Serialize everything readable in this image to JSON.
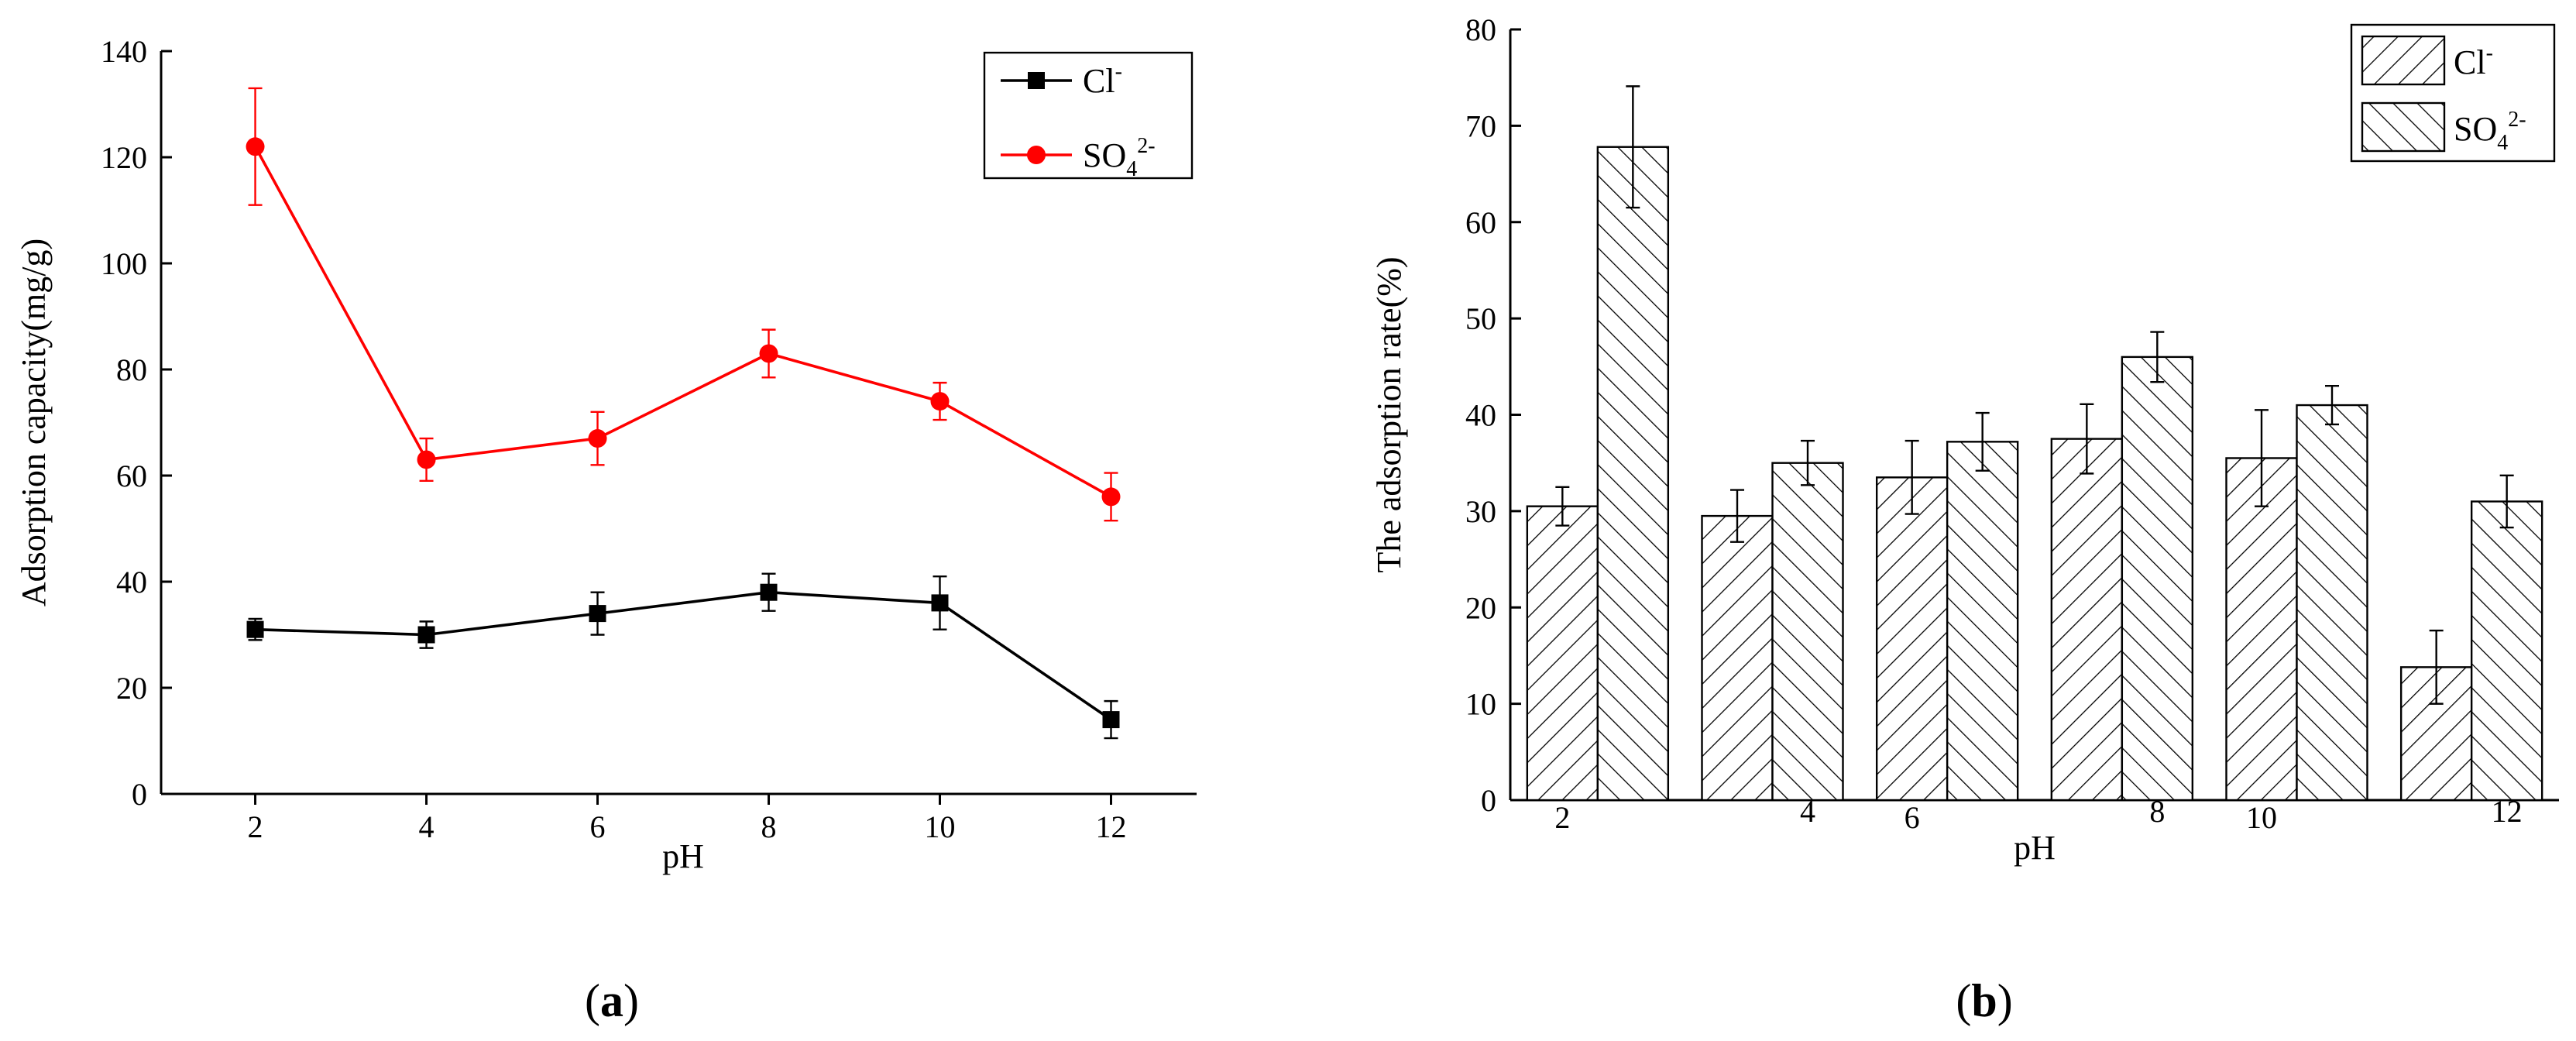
{
  "chart_data": [
    {
      "type": "line",
      "panel_label": "a",
      "xlabel": "pH",
      "ylabel": "Adsorption capacity(mg/g)",
      "x": [
        2,
        4,
        6,
        8,
        10,
        12
      ],
      "xlim": [
        0.9,
        13
      ],
      "ylim": [
        0,
        140
      ],
      "xticks": [
        2,
        4,
        6,
        8,
        10,
        12
      ],
      "yticks": [
        0,
        20,
        40,
        60,
        80,
        100,
        120,
        140
      ],
      "grid": false,
      "legend_position": "top-right",
      "series": [
        {
          "name": "Cl",
          "superscript": "-",
          "subscript": "",
          "color": "#000000",
          "marker": "square",
          "values": [
            31,
            30,
            34,
            38,
            36,
            14
          ],
          "errors": [
            2,
            2.5,
            4,
            3.5,
            5,
            3.5
          ]
        },
        {
          "name": "SO",
          "subscript": "4",
          "superscript": "2-",
          "color": "#ff0000",
          "marker": "circle",
          "values": [
            122,
            63,
            67,
            83,
            74,
            56
          ],
          "errors": [
            11,
            4,
            5,
            4.5,
            3.5,
            4.5
          ]
        }
      ]
    },
    {
      "type": "bar",
      "panel_label": "b",
      "xlabel": "pH",
      "ylabel": "The adsorption rate(%)",
      "categories": [
        "2",
        "4",
        "6",
        "8",
        "10",
        "12"
      ],
      "ylim": [
        0,
        80
      ],
      "yticks": [
        0,
        10,
        20,
        30,
        40,
        50,
        60,
        70,
        80
      ],
      "grid": false,
      "legend_position": "top-right",
      "series": [
        {
          "name": "Cl",
          "superscript": "-",
          "subscript": "",
          "hatch": "forward-diagonal",
          "values": [
            30.5,
            29.5,
            33.5,
            37.5,
            35.5,
            13.8
          ],
          "errors": [
            2,
            2.7,
            3.8,
            3.6,
            5,
            3.8
          ]
        },
        {
          "name": "SO",
          "subscript": "4",
          "superscript": "2-",
          "hatch": "back-diagonal",
          "values": [
            67.8,
            35,
            37.2,
            46,
            41,
            31
          ],
          "errors": [
            6.3,
            2.3,
            3,
            2.6,
            2,
            2.7
          ]
        }
      ]
    }
  ]
}
